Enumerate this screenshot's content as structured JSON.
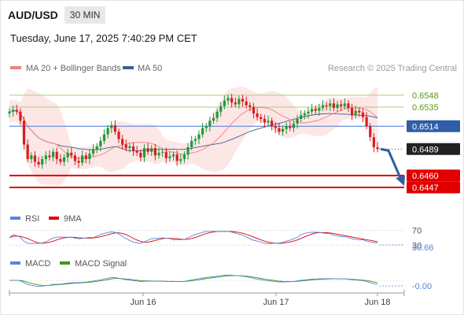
{
  "header": {
    "symbol": "AUD/USD",
    "timeframe": "30 MIN",
    "timestamp": "Tuesday, June 17, 2025 7:40:29 PM CET"
  },
  "legend": {
    "bollinger": "MA 20 + Bollinger Bands",
    "ma50": "MA 50",
    "credit": "Research © 2025 Trading Central"
  },
  "colors": {
    "up": "#1f9a3a",
    "down": "#d81e1e",
    "ma20": "#f08080",
    "ma50": "#3a5f95",
    "band_fill": "#fde3e3",
    "green_line": "#a8cf7a",
    "current_line": "#5b86d6",
    "arrow": "#2f5da6",
    "red_level": "#e00000"
  },
  "chart_data": [
    {
      "type": "line",
      "title": "AUD/USD 30 MIN",
      "xlabel": "",
      "ylabel": "",
      "x_ticks": [
        "Jun 16",
        "Jun 17",
        "Jun 18"
      ],
      "ylim": [
        0.6428,
        0.6566
      ],
      "levels": [
        {
          "value": 0.6548,
          "label": "0.6548",
          "kind": "resistance"
        },
        {
          "value": 0.6535,
          "label": "0.6535",
          "kind": "resistance"
        },
        {
          "value": 0.6514,
          "label": "0.6514",
          "kind": "pivot"
        },
        {
          "value": 0.6489,
          "label": "0.6489",
          "kind": "last"
        },
        {
          "value": 0.646,
          "label": "0.6460",
          "kind": "support"
        },
        {
          "value": 0.6447,
          "label": "0.6447",
          "kind": "support"
        }
      ],
      "close_path": [
        0.653,
        0.6532,
        0.653,
        0.652,
        0.6494,
        0.6478,
        0.6482,
        0.6475,
        0.6472,
        0.6478,
        0.6482,
        0.648,
        0.6486,
        0.6478,
        0.6475,
        0.648,
        0.6485,
        0.6482,
        0.6476,
        0.6474,
        0.6482,
        0.6478,
        0.6484,
        0.6489,
        0.6492,
        0.6498,
        0.6505,
        0.6512,
        0.6515,
        0.6508,
        0.65,
        0.6494,
        0.649,
        0.6492,
        0.6487,
        0.6485,
        0.648,
        0.649,
        0.6486,
        0.649,
        0.6482,
        0.6485,
        0.6486,
        0.6479,
        0.6481,
        0.6483,
        0.6476,
        0.6478,
        0.6483,
        0.6491,
        0.6498,
        0.65,
        0.6505,
        0.6512,
        0.6514,
        0.652,
        0.6523,
        0.653,
        0.6536,
        0.6542,
        0.6545,
        0.654,
        0.6538,
        0.6544,
        0.6541,
        0.6537,
        0.6535,
        0.6528,
        0.6524,
        0.6522,
        0.6518,
        0.652,
        0.6514,
        0.6512,
        0.6508,
        0.6511,
        0.6514,
        0.6512,
        0.6517,
        0.6522,
        0.6526,
        0.6528,
        0.653,
        0.6533,
        0.6531,
        0.6534,
        0.6537,
        0.6536,
        0.6539,
        0.6534,
        0.6538,
        0.6536,
        0.6539,
        0.6534,
        0.6526,
        0.6531,
        0.6529,
        0.6524,
        0.6514,
        0.6502,
        0.6491,
        0.6489
      ],
      "projection": {
        "from": 0.6489,
        "to": 0.6447
      }
    },
    {
      "type": "line",
      "title": "RSI",
      "series": [
        {
          "name": "RSI",
          "color": "#5b86d6"
        },
        {
          "name": "9MA",
          "color": "#e00000"
        }
      ],
      "levels": [
        {
          "value": 70,
          "label": "70"
        },
        {
          "value": 30,
          "label": "30"
        }
      ],
      "last_value": 30.66,
      "last_label": "30.66"
    },
    {
      "type": "line",
      "title": "MACD",
      "series": [
        {
          "name": "MACD",
          "color": "#5b86d6"
        },
        {
          "name": "MACD Signal",
          "color": "#3a9a1a"
        }
      ],
      "last_label": "-0.00"
    }
  ]
}
